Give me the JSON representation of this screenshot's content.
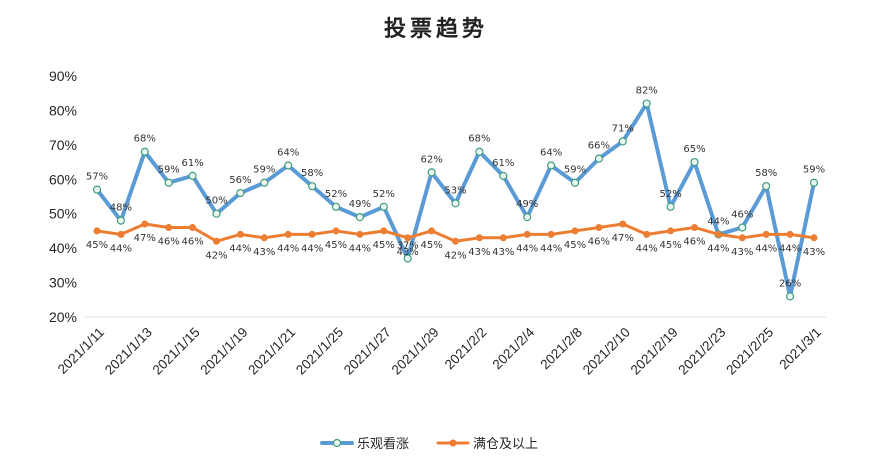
{
  "chart_data": {
    "type": "line",
    "title": "投票趋势",
    "xlabel": "",
    "ylabel": "",
    "ylim": [
      20,
      90
    ],
    "y_ticks": [
      20,
      30,
      40,
      50,
      60,
      70,
      80,
      90
    ],
    "value_suffix": "%",
    "grid": false,
    "legend": "bottom",
    "categories": [
      "2021/1/11",
      "",
      "2021/1/13",
      "",
      "2021/1/15",
      "",
      "2021/1/19",
      "",
      "2021/1/21",
      "",
      "2021/1/25",
      "",
      "2021/1/27",
      "",
      "2021/1/29",
      "",
      "2021/2/2",
      "",
      "2021/2/4",
      "",
      "2021/2/8",
      "",
      "2021/2/10",
      "",
      "2021/2/19",
      "",
      "2021/2/23",
      "",
      "2021/2/25",
      "",
      "2021/3/1"
    ],
    "series": [
      {
        "name": "乐观看涨",
        "color": "#5B9BD5",
        "marker": "circle",
        "marker_fill": "#EEF7EF",
        "marker_stroke": "#3E9C7E",
        "values": [
          57,
          48,
          68,
          59,
          61,
          50,
          56,
          59,
          64,
          58,
          52,
          49,
          52,
          37,
          62,
          53,
          68,
          61,
          49,
          64,
          59,
          66,
          71,
          82,
          52,
          65,
          44,
          46,
          58,
          26,
          59
        ]
      },
      {
        "name": "满仓及以上",
        "color": "#ED7D31",
        "marker": "dot",
        "marker_fill": "#ED7D31",
        "marker_stroke": "#ED7D31",
        "values": [
          45,
          44,
          47,
          46,
          46,
          42,
          44,
          43,
          44,
          44,
          45,
          44,
          45,
          43,
          45,
          42,
          43,
          43,
          44,
          44,
          45,
          46,
          47,
          44,
          45,
          46,
          44,
          43,
          44,
          44,
          43
        ]
      }
    ]
  }
}
